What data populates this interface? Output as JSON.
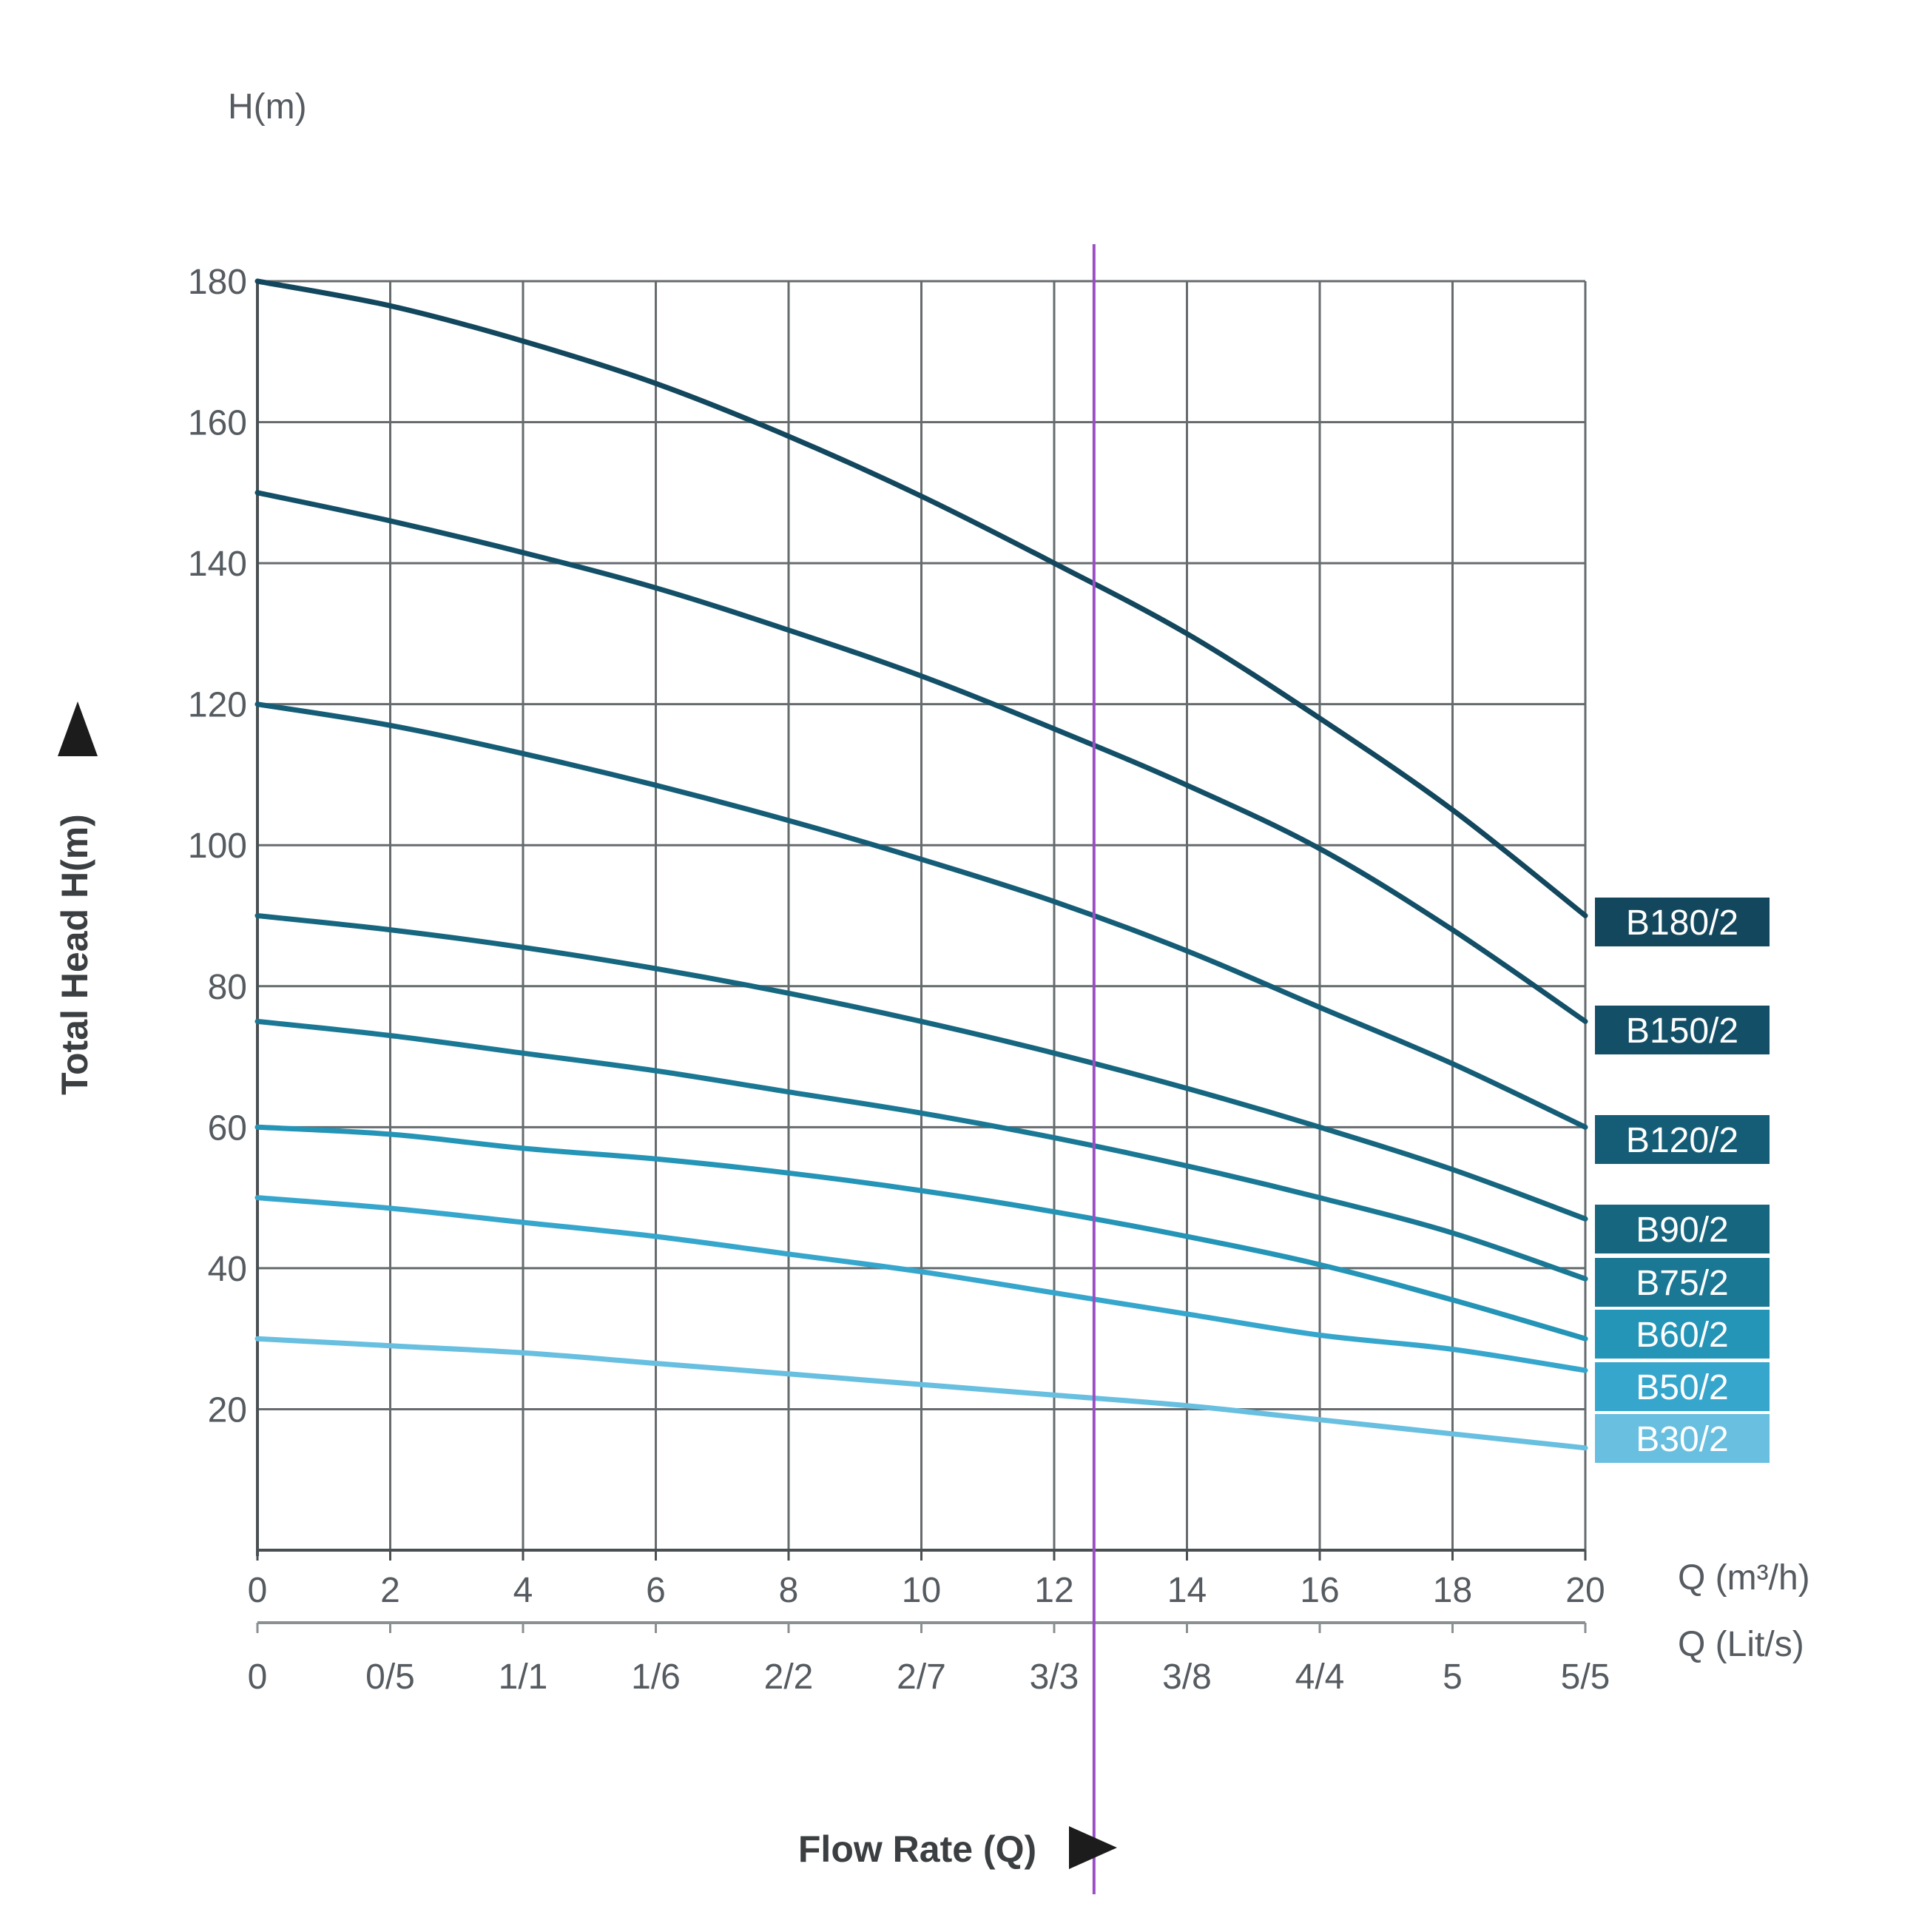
{
  "chart_data": {
    "type": "line",
    "y_unit_label": "H(m)",
    "ylabel": "Total Head H(m)",
    "xlabel": "Flow Rate (Q)",
    "x_unit_label": "Q  (m³/h)",
    "x2_unit_label": "Q  (Lit/s)",
    "xlim": [
      0,
      20
    ],
    "ylim": [
      0,
      180
    ],
    "x_ticks": [
      0,
      2,
      4,
      6,
      8,
      10,
      12,
      14,
      16,
      18,
      20
    ],
    "y_ticks": [
      20,
      40,
      60,
      80,
      100,
      120,
      140,
      160,
      180
    ],
    "x_tick_labels": [
      "0",
      "2",
      "4",
      "6",
      "8",
      "10",
      "12",
      "14",
      "16",
      "18",
      "20"
    ],
    "x2_tick_labels": [
      "0",
      "0/5",
      "1/1",
      "1/6",
      "2/2",
      "2/7",
      "3/3",
      "3/8",
      "4/4",
      "5",
      "5/5"
    ],
    "y_tick_labels": [
      "20",
      "40",
      "60",
      "80",
      "100",
      "120",
      "140",
      "160",
      "180"
    ],
    "grid": true,
    "reference_line_x": 12.6,
    "legend_position": "right",
    "x": [
      0,
      2,
      4,
      6,
      8,
      10,
      12,
      14,
      16,
      18,
      20
    ],
    "series": [
      {
        "name": "B180/2",
        "color": "#12475d",
        "values": [
          180,
          176.5,
          171.5,
          165.5,
          158,
          149.5,
          140,
          130,
          118,
          105,
          90
        ]
      },
      {
        "name": "B150/2",
        "color": "#135068",
        "values": [
          150,
          146,
          141.5,
          136.5,
          130.5,
          124,
          116.5,
          108.5,
          99.5,
          88,
          75
        ]
      },
      {
        "name": "B120/2",
        "color": "#155d76",
        "values": [
          120,
          117,
          113,
          108.5,
          103.5,
          98,
          92,
          85,
          77,
          69,
          60
        ]
      },
      {
        "name": "B90/2",
        "color": "#17667f",
        "values": [
          90,
          88,
          85.5,
          82.5,
          79,
          75,
          70.5,
          65.5,
          60,
          54,
          47
        ]
      },
      {
        "name": "B75/2",
        "color": "#1a7895",
        "values": [
          75,
          73,
          70.5,
          68,
          65,
          62,
          58.5,
          54.5,
          50,
          45,
          38.5
        ]
      },
      {
        "name": "B60/2",
        "color": "#2494b7",
        "values": [
          60,
          59,
          57,
          55.5,
          53.5,
          51,
          48,
          44.5,
          40.5,
          35.5,
          30
        ]
      },
      {
        "name": "B50/2",
        "color": "#36a6cd",
        "values": [
          50,
          48.5,
          46.5,
          44.5,
          42,
          39.5,
          36.5,
          33.5,
          30.5,
          28.5,
          25.5
        ]
      },
      {
        "name": "B30/2",
        "color": "#68bfe0",
        "values": [
          30,
          29,
          28,
          26.5,
          25,
          23.5,
          22,
          20.5,
          18.5,
          16.5,
          14.5
        ]
      }
    ]
  }
}
